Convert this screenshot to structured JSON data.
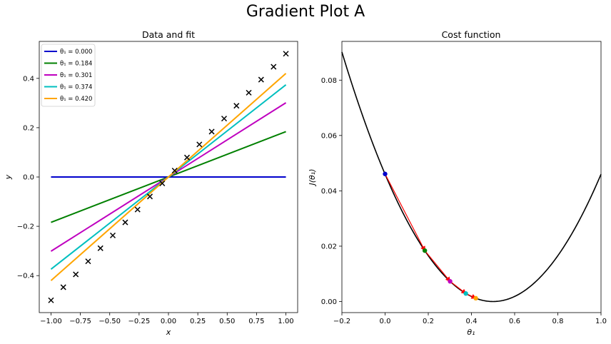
{
  "suptitle": "Gradient Plot A",
  "chart_data": [
    {
      "type": "line",
      "title": "Data and fit",
      "xlabel": "x",
      "ylabel": "y",
      "xlim": [
        -1.1,
        1.1
      ],
      "ylim": [
        -0.55,
        0.55
      ],
      "xticks": [
        -1.0,
        -0.75,
        -0.5,
        -0.25,
        0.0,
        0.25,
        0.5,
        0.75,
        1.0
      ],
      "xtick_labels": [
        "−1.00",
        "−0.75",
        "−0.50",
        "−0.25",
        "0.00",
        "0.25",
        "0.50",
        "0.75",
        "1.00"
      ],
      "yticks": [
        -0.4,
        -0.2,
        0.0,
        0.2,
        0.4
      ],
      "ytick_labels": [
        "−0.4",
        "−0.2",
        "0.0",
        "0.2",
        "0.4"
      ],
      "legend_position": "top-left",
      "scatter": {
        "marker": "x",
        "color": "#000000",
        "x": [
          -1.0,
          -0.895,
          -0.789,
          -0.684,
          -0.579,
          -0.474,
          -0.368,
          -0.263,
          -0.158,
          -0.053,
          0.053,
          0.158,
          0.263,
          0.368,
          0.474,
          0.579,
          0.684,
          0.789,
          0.895,
          1.0
        ],
        "y": [
          -0.5,
          -0.447,
          -0.395,
          -0.342,
          -0.289,
          -0.237,
          -0.184,
          -0.132,
          -0.079,
          -0.026,
          0.026,
          0.079,
          0.132,
          0.184,
          0.237,
          0.289,
          0.342,
          0.395,
          0.447,
          0.5
        ]
      },
      "series": [
        {
          "name": "θ₁ = 0.000",
          "theta": 0.0,
          "color": "#0000cc",
          "x": [
            -1,
            1
          ]
        },
        {
          "name": "θ₁ = 0.184",
          "theta": 0.184,
          "color": "#008000",
          "x": [
            -1,
            1
          ]
        },
        {
          "name": "θ₁ = 0.301",
          "theta": 0.301,
          "color": "#bf00bf",
          "x": [
            -1,
            1
          ]
        },
        {
          "name": "θ₁ = 0.374",
          "theta": 0.374,
          "color": "#00bfbf",
          "x": [
            -1,
            1
          ]
        },
        {
          "name": "θ₁ = 0.420",
          "theta": 0.42,
          "color": "#ffa500",
          "x": [
            -1,
            1
          ]
        }
      ]
    },
    {
      "type": "line",
      "title": "Cost function",
      "xlabel": "θ₁",
      "ylabel": "J(θ₁)",
      "xlim": [
        -0.2,
        1.0
      ],
      "ylim": [
        -0.004,
        0.094
      ],
      "xticks": [
        -0.2,
        0.0,
        0.2,
        0.4,
        0.6,
        0.8,
        1.0
      ],
      "xtick_labels": [
        "−0.2",
        "0.0",
        "0.2",
        "0.4",
        "0.6",
        "0.8",
        "1.0"
      ],
      "yticks": [
        0.0,
        0.02,
        0.04,
        0.06,
        0.08
      ],
      "ytick_labels": [
        "0.00",
        "0.02",
        "0.04",
        "0.06",
        "0.08"
      ],
      "curve": {
        "color": "#000000",
        "formula": "0.184*(t-0.5)^2",
        "x_range": [
          -0.2,
          1.0
        ]
      },
      "points": [
        {
          "theta": 0.0,
          "J": 0.0461,
          "color": "#0000cc"
        },
        {
          "theta": 0.184,
          "J": 0.0184,
          "color": "#008000"
        },
        {
          "theta": 0.301,
          "J": 0.0073,
          "color": "#bf00bf"
        },
        {
          "theta": 0.374,
          "J": 0.0029,
          "color": "#00bfbf"
        },
        {
          "theta": 0.42,
          "J": 0.0012,
          "color": "#ffa500"
        }
      ],
      "arrow_color": "#ff0000"
    }
  ]
}
